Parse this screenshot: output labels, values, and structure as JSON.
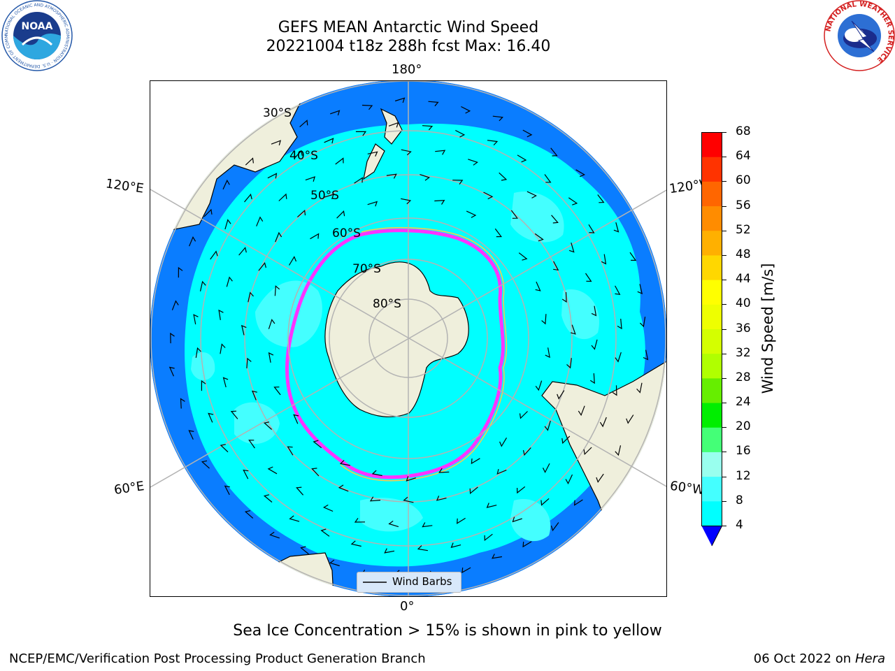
{
  "title": {
    "line1": "GEFS MEAN Antarctic Wind Speed",
    "line2": "20221004 t18z 288h fcst   Max: 16.40"
  },
  "logos": {
    "left": {
      "name": "noaa-logo",
      "text": "NOAA",
      "ring_text": "NATIONAL OCEANIC AND ATMOSPHERIC ADMINISTRATION · U.S. DEPARTMENT OF COMMERCE"
    },
    "right": {
      "name": "nws-logo",
      "ring_text": "NATIONAL WEATHER SERVICE"
    }
  },
  "map": {
    "projection": "south polar stereographic",
    "longitude_labels": {
      "top": "180°",
      "bottom": "0°",
      "upper_left": "120°E",
      "lower_left": "60°E",
      "upper_right": "120°W",
      "lower_right": "60°W"
    },
    "latitude_labels": [
      "30°S",
      "40°S",
      "50°S",
      "60°S",
      "70°S",
      "80°S"
    ],
    "colors": {
      "land": "#efefdc",
      "ocean_4_8": "#0a7dff",
      "ocean_8_12": "#00ffff",
      "ocean_12_16": "#44ffff",
      "ice_edge": "#ff33ff",
      "ice_yellow": "#ffc84a",
      "grid": "#b3b3b3"
    },
    "legend_label": "Wind Barbs"
  },
  "colorbar": {
    "label": "Wind Speed [m/s]",
    "ticks": [
      "68",
      "64",
      "60",
      "56",
      "52",
      "48",
      "44",
      "40",
      "36",
      "32",
      "28",
      "24",
      "20",
      "16",
      "12",
      "8",
      "4"
    ],
    "colors_top_to_bottom": [
      "#ff0000",
      "#ff3300",
      "#ff6600",
      "#ff8c00",
      "#ffb000",
      "#ffd700",
      "#ffff00",
      "#eeff00",
      "#d4ff00",
      "#b0ff00",
      "#66ee00",
      "#00ee00",
      "#44ff77",
      "#99ffee",
      "#44ffff",
      "#00ffff",
      "#0a7dff"
    ],
    "extend_color": "#0000ff"
  },
  "caption": "Sea Ice Concentration > 15% is shown in pink to yellow",
  "footer": {
    "left": "NCEP/EMC/Verification Post Processing Product Generation Branch",
    "right_prefix": "06 Oct 2022 on ",
    "right_machine": "Hera"
  }
}
